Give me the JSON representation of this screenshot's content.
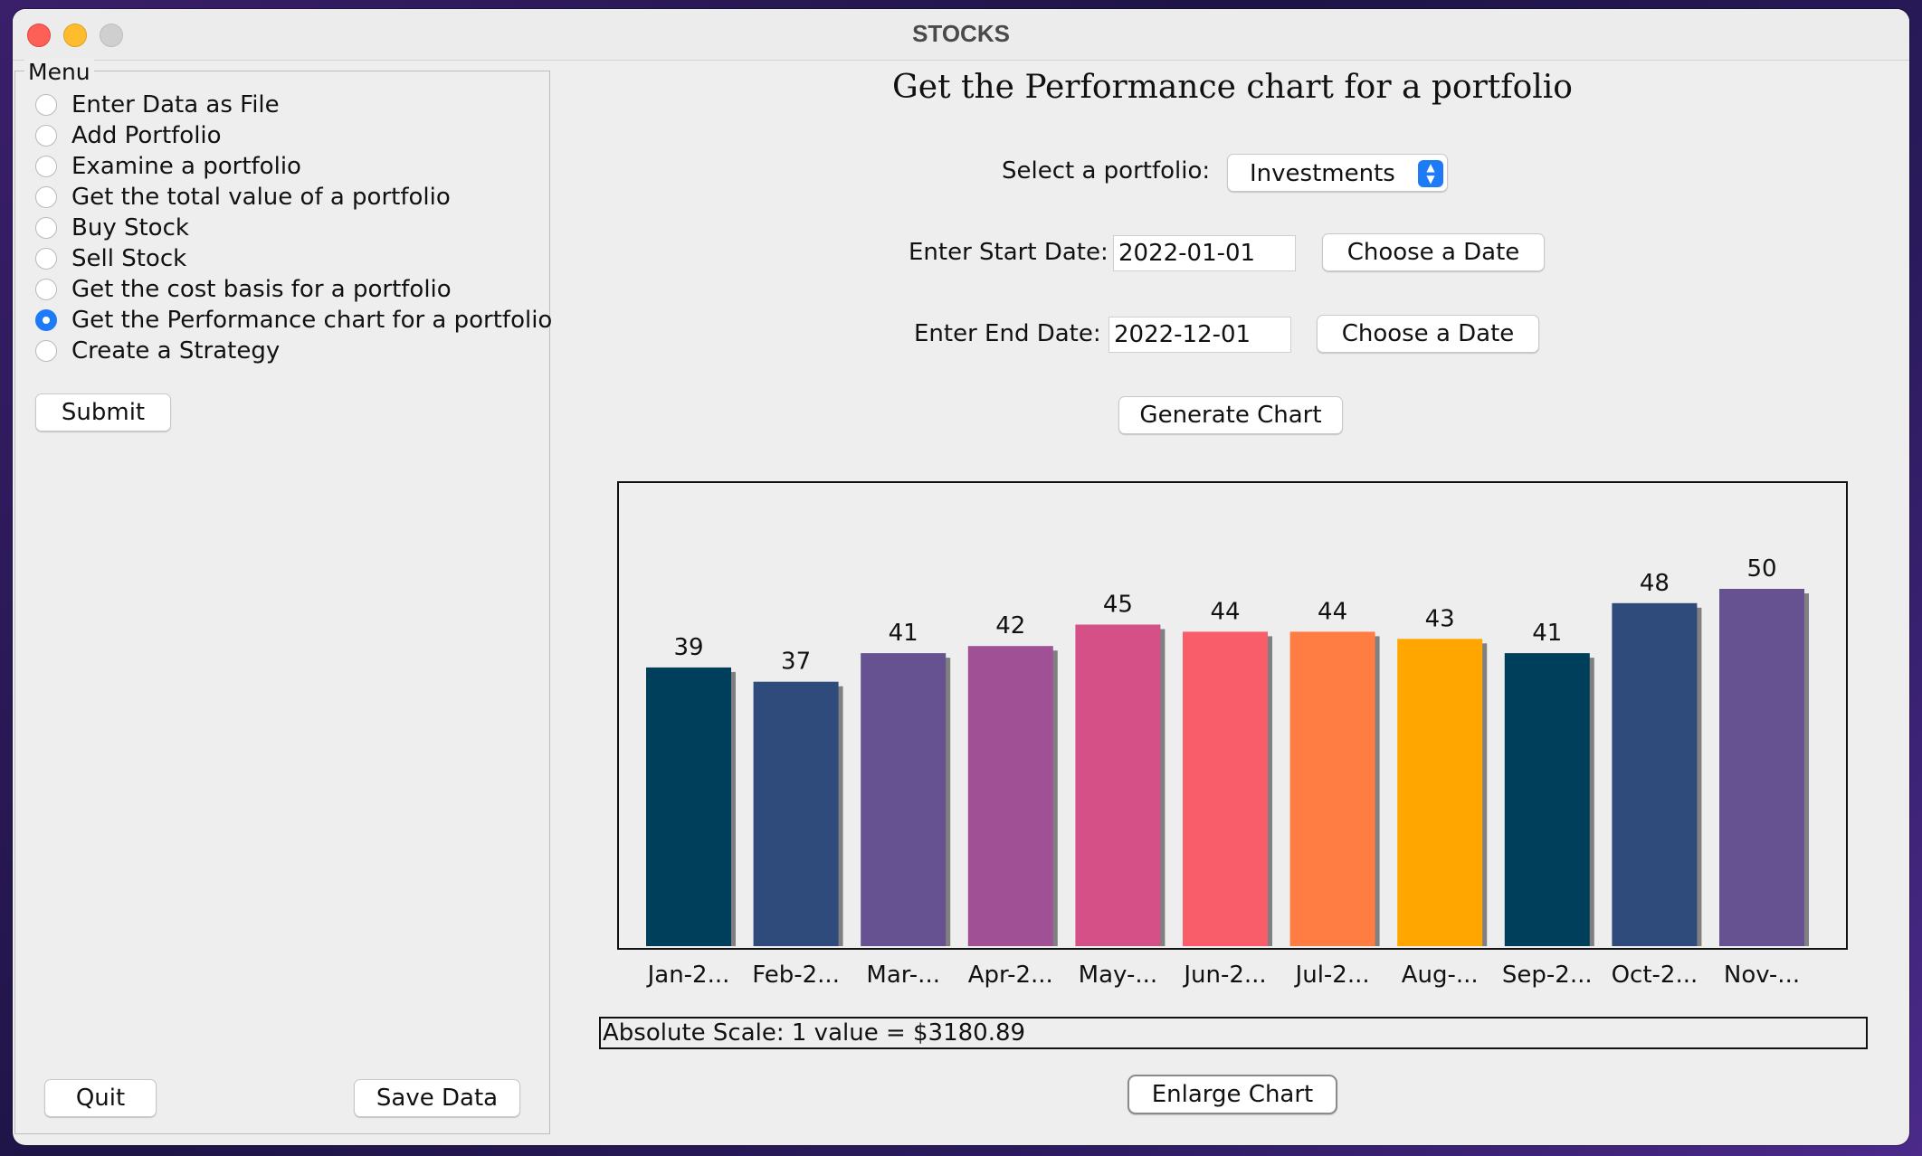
{
  "window": {
    "title": "STOCKS"
  },
  "menu": {
    "legend": "Menu",
    "options": [
      {
        "label": "Enter Data as File",
        "selected": false
      },
      {
        "label": "Add Portfolio",
        "selected": false
      },
      {
        "label": "Examine a portfolio",
        "selected": false
      },
      {
        "label": "Get the total value of a portfolio",
        "selected": false
      },
      {
        "label": "Buy Stock",
        "selected": false
      },
      {
        "label": "Sell Stock",
        "selected": false
      },
      {
        "label": "Get the cost basis for a portfolio",
        "selected": false
      },
      {
        "label": "Get the Performance chart for a portfolio",
        "selected": true
      },
      {
        "label": "Create a Strategy",
        "selected": false
      }
    ],
    "submit_label": "Submit",
    "quit_label": "Quit",
    "save_label": "Save Data"
  },
  "main": {
    "title": "Get the Performance chart for a portfolio",
    "portfolio_label": "Select a portfolio:",
    "portfolio_value": "Investments",
    "start_label": "Enter Start Date:",
    "start_value": "2022-01-01",
    "end_label": "Enter End Date:",
    "end_value": "2022-12-01",
    "choose_date_label": "Choose a Date",
    "generate_label": "Generate Chart",
    "scale_text": "Absolute Scale: 1 value = $3180.89",
    "enlarge_label": "Enlarge Chart"
  },
  "chart_data": {
    "type": "bar",
    "categories": [
      "Jan-2...",
      "Feb-2...",
      "Mar-...",
      "Apr-2...",
      "May-...",
      "Jun-2...",
      "Jul-2...",
      "Aug-...",
      "Sep-2...",
      "Oct-2...",
      "Nov-..."
    ],
    "values": [
      39,
      37,
      41,
      42,
      45,
      44,
      44,
      43,
      41,
      48,
      50
    ],
    "colors": [
      "#003f5c",
      "#2f4b7c",
      "#665191",
      "#a05195",
      "#d45087",
      "#f95d6a",
      "#ff7c43",
      "#ffa600",
      "#003f5c",
      "#2f4b7c",
      "#665191"
    ],
    "shadow_color": "#808080",
    "ylim": [
      0,
      62
    ],
    "title": "",
    "xlabel": "",
    "ylabel": "",
    "grid": false,
    "show_value_labels": true
  }
}
